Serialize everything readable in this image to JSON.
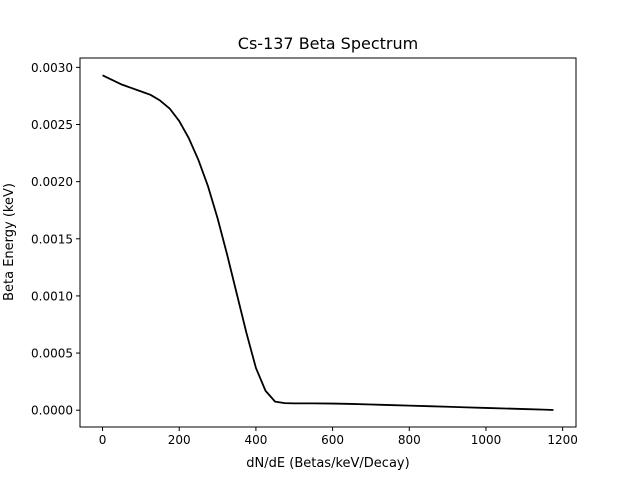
{
  "chart_data": {
    "type": "line",
    "title": "Cs-137 Beta Spectrum",
    "xlabel": "dN/dE (Betas/keV/Decay)",
    "ylabel": "Beta Energy (keV)",
    "xlim": [
      -58.8,
      1234.8
    ],
    "ylim": [
      -0.000147,
      0.003082
    ],
    "x_ticks": [
      {
        "value": 0,
        "label": "0"
      },
      {
        "value": 200,
        "label": "200"
      },
      {
        "value": 400,
        "label": "400"
      },
      {
        "value": 600,
        "label": "600"
      },
      {
        "value": 800,
        "label": "800"
      },
      {
        "value": 1000,
        "label": "1000"
      },
      {
        "value": 1200,
        "label": "1200"
      }
    ],
    "y_ticks": [
      {
        "value": 0.0,
        "label": "0.0000"
      },
      {
        "value": 0.0005,
        "label": "0.0005"
      },
      {
        "value": 0.001,
        "label": "0.0010"
      },
      {
        "value": 0.0015,
        "label": "0.0015"
      },
      {
        "value": 0.002,
        "label": "0.0020"
      },
      {
        "value": 0.0025,
        "label": "0.0025"
      },
      {
        "value": 0.003,
        "label": "0.0030"
      }
    ],
    "grid": false,
    "series": [
      {
        "color": "#000000",
        "x": [
          0,
          25,
          50,
          75,
          100,
          125,
          150,
          175,
          200,
          225,
          250,
          275,
          300,
          325,
          350,
          375,
          400,
          425,
          450,
          475,
          500,
          512,
          550,
          600,
          650,
          700,
          750,
          800,
          850,
          900,
          950,
          1000,
          1050,
          1100,
          1150,
          1176
        ],
        "y": [
          0.00293,
          0.00289,
          0.00285,
          0.00282,
          0.00279,
          0.00276,
          0.00271,
          0.00264,
          0.00253,
          0.00238,
          0.00219,
          0.00196,
          0.00168,
          0.00136,
          0.00102,
          0.00068,
          0.00037,
          0.00017,
          7.5e-05,
          6.2e-05,
          6e-05,
          6e-05,
          5.95e-05,
          5.8e-05,
          5.5e-05,
          5e-05,
          4.5e-05,
          4e-05,
          3.5e-05,
          3e-05,
          2.5e-05,
          2e-05,
          1.5e-05,
          1e-05,
          5e-06,
          2e-06
        ]
      }
    ]
  }
}
